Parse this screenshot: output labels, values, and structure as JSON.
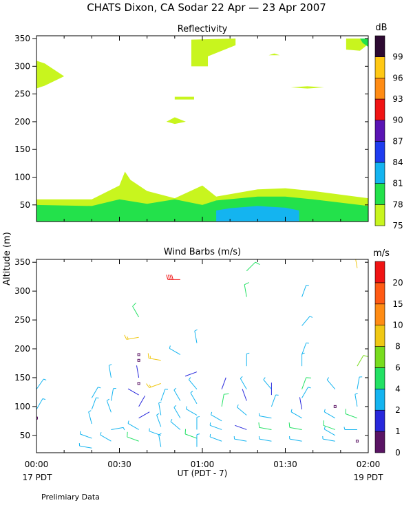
{
  "title": "CHATS Dixon, CA  Sodar  22 Apr — 23 Apr 2007",
  "shared_ylabel": "Altitude (m)",
  "footnote": "Prelimiary Data",
  "colors": {
    "refl_scale": [
      "#c8f51e",
      "#23e14b",
      "#14b4f0",
      "#1e3cf0",
      "#5a14b4",
      "#f01414",
      "#ff8c14",
      "#ffc814",
      "#2d0a32"
    ],
    "wind_scale": [
      "#5a1464",
      "#2828dc",
      "#14b4f0",
      "#23e164",
      "#78dc1e",
      "#f0c814",
      "#ff8c14",
      "#ff5a14",
      "#f01414"
    ]
  },
  "chart_data": [
    {
      "type": "heatmap",
      "title": "Reflectivity",
      "unit_label": "dB",
      "xlim": [
        0,
        120
      ],
      "ylim": [
        20,
        355
      ],
      "yticks": [
        50,
        100,
        150,
        200,
        250,
        300,
        350
      ],
      "xticks": [
        0,
        30,
        60,
        90,
        120
      ],
      "xticklabels": [
        "00:00",
        "00:30",
        "01:00",
        "01:30",
        "02:00"
      ],
      "colorbar": {
        "levels": [
          75,
          78,
          81,
          84,
          87,
          90,
          93,
          96,
          99
        ]
      },
      "bands": [
        {
          "level": 75,
          "x": [
            0,
            20,
            30,
            32,
            34,
            40,
            50,
            60,
            65,
            80,
            90,
            100,
            120
          ],
          "top": [
            60,
            60,
            85,
            110,
            95,
            75,
            62,
            85,
            65,
            78,
            80,
            75,
            62
          ]
        },
        {
          "level": 78,
          "x": [
            0,
            20,
            30,
            40,
            50,
            60,
            65,
            80,
            90,
            100,
            120
          ],
          "top": [
            50,
            48,
            60,
            52,
            60,
            50,
            58,
            65,
            65,
            60,
            48
          ]
        },
        {
          "level": 81,
          "x": [
            65,
            70,
            80,
            90,
            95
          ],
          "top": [
            40,
            44,
            48,
            45,
            40
          ]
        }
      ],
      "patches": [
        {
          "level": 75,
          "x": [
            0,
            3,
            10,
            3,
            0
          ],
          "y": [
            260,
            265,
            282,
            305,
            310
          ]
        },
        {
          "level": 75,
          "x": [
            56,
            72,
            72,
            62,
            62,
            56
          ],
          "y": [
            348,
            350,
            338,
            318,
            300,
            300
          ]
        },
        {
          "level": 75,
          "x": [
            50,
            57,
            57,
            50
          ],
          "y": [
            240,
            240,
            245,
            245
          ]
        },
        {
          "level": 75,
          "x": [
            47,
            50,
            54,
            50,
            47
          ],
          "y": [
            200,
            196,
            200,
            208,
            200
          ]
        },
        {
          "level": 75,
          "x": [
            84,
            86,
            88
          ],
          "y": [
            320,
            323,
            320
          ]
        },
        {
          "level": 75,
          "x": [
            92,
            98,
            104,
            98,
            92
          ],
          "y": [
            262,
            260,
            262,
            264,
            262
          ]
        },
        {
          "level": 75,
          "x": [
            112,
            120,
            120,
            117,
            112
          ],
          "y": [
            350,
            350,
            340,
            328,
            330
          ]
        },
        {
          "level": 78,
          "x": [
            117,
            120,
            120,
            118
          ],
          "y": [
            350,
            350,
            335,
            342
          ]
        }
      ]
    },
    {
      "type": "scatter",
      "title": "Wind Barbs (m/s)",
      "unit_label": "m/s",
      "xlim": [
        0,
        120
      ],
      "ylim": [
        20,
        355
      ],
      "yticks": [
        50,
        100,
        150,
        200,
        250,
        300,
        350
      ],
      "xticks": [
        0,
        30,
        60,
        90,
        120
      ],
      "xticklabels": [
        "00:00",
        "00:30",
        "01:00",
        "01:30",
        "02:00"
      ],
      "xlabel": "UT  (PDT - 7)",
      "x_start_label": "17 PDT",
      "x_end_label": "19 PDT",
      "colorbar": {
        "levels": [
          0,
          1,
          2,
          4,
          6,
          8,
          10,
          15,
          20
        ]
      },
      "barbs": [
        {
          "t": 0,
          "z": 130,
          "d": 35,
          "s": 3
        },
        {
          "t": 0,
          "z": 95,
          "d": 30,
          "s": 3
        },
        {
          "t": 0,
          "z": 80,
          "d": 0,
          "s": 0
        },
        {
          "t": 0,
          "z": 62,
          "d": 355,
          "s": 1
        },
        {
          "t": 0,
          "z": 30,
          "d": 330,
          "s": 1
        },
        {
          "t": 20,
          "z": 115,
          "d": 30,
          "s": 3
        },
        {
          "t": 20,
          "z": 95,
          "d": 20,
          "s": 3
        },
        {
          "t": 20,
          "z": 70,
          "d": 345,
          "s": 3
        },
        {
          "t": 20,
          "z": 45,
          "d": 290,
          "s": 3
        },
        {
          "t": 20,
          "z": 28,
          "d": 280,
          "s": 3
        },
        {
          "t": 27,
          "z": 150,
          "d": 350,
          "s": 3
        },
        {
          "t": 27,
          "z": 110,
          "d": 10,
          "s": 3
        },
        {
          "t": 27,
          "z": 90,
          "d": 340,
          "s": 3
        },
        {
          "t": 27,
          "z": 60,
          "d": 80,
          "s": 3
        },
        {
          "t": 27,
          "z": 40,
          "d": 300,
          "s": 3
        },
        {
          "t": 37,
          "z": 255,
          "d": 330,
          "s": 5
        },
        {
          "t": 37,
          "z": 220,
          "d": 260,
          "s": 8
        },
        {
          "t": 37,
          "z": 190,
          "d": 0,
          "s": 0
        },
        {
          "t": 37,
          "z": 180,
          "d": 0,
          "s": 0
        },
        {
          "t": 37,
          "z": 150,
          "d": 350,
          "s": 1
        },
        {
          "t": 37,
          "z": 140,
          "d": 0,
          "s": 0
        },
        {
          "t": 37,
          "z": 120,
          "d": 300,
          "s": 1
        },
        {
          "t": 37,
          "z": 100,
          "d": 30,
          "s": 1
        },
        {
          "t": 37,
          "z": 80,
          "d": 60,
          "s": 1
        },
        {
          "t": 37,
          "z": 60,
          "d": 300,
          "s": 3
        },
        {
          "t": 37,
          "z": 40,
          "d": 290,
          "s": 5
        },
        {
          "t": 45,
          "z": 180,
          "d": 280,
          "s": 9
        },
        {
          "t": 45,
          "z": 140,
          "d": 250,
          "s": 8
        },
        {
          "t": 45,
          "z": 110,
          "d": 20,
          "s": 3
        },
        {
          "t": 45,
          "z": 85,
          "d": 350,
          "s": 3
        },
        {
          "t": 45,
          "z": 65,
          "d": 340,
          "s": 3
        },
        {
          "t": 45,
          "z": 50,
          "d": 290,
          "s": 3
        },
        {
          "t": 45,
          "z": 30,
          "d": 350,
          "s": 3
        },
        {
          "t": 52,
          "z": 320,
          "d": 270,
          "s": 20
        },
        {
          "t": 52,
          "z": 190,
          "d": 300,
          "s": 3
        },
        {
          "t": 52,
          "z": 110,
          "d": 330,
          "s": 3
        },
        {
          "t": 52,
          "z": 80,
          "d": 330,
          "s": 3
        },
        {
          "t": 52,
          "z": 60,
          "d": 310,
          "s": 3
        },
        {
          "t": 58,
          "z": 210,
          "d": 350,
          "s": 3
        },
        {
          "t": 58,
          "z": 160,
          "d": 250,
          "s": 1
        },
        {
          "t": 58,
          "z": 130,
          "d": 320,
          "s": 3
        },
        {
          "t": 58,
          "z": 105,
          "d": 330,
          "s": 3
        },
        {
          "t": 58,
          "z": 85,
          "d": 300,
          "s": 3
        },
        {
          "t": 58,
          "z": 60,
          "d": 0,
          "s": 3
        },
        {
          "t": 58,
          "z": 45,
          "d": 290,
          "s": 5
        },
        {
          "t": 58,
          "z": 30,
          "d": 0,
          "s": 3
        },
        {
          "t": 67,
          "z": 130,
          "d": 20,
          "s": 1
        },
        {
          "t": 67,
          "z": 100,
          "d": 10,
          "s": 5
        },
        {
          "t": 67,
          "z": 75,
          "d": 300,
          "s": 3
        },
        {
          "t": 67,
          "z": 60,
          "d": 290,
          "s": 3
        },
        {
          "t": 67,
          "z": 40,
          "d": 290,
          "s": 3
        },
        {
          "t": 76,
          "z": 335,
          "d": 45,
          "s": 5
        },
        {
          "t": 76,
          "z": 290,
          "d": 350,
          "s": 5
        },
        {
          "t": 76,
          "z": 170,
          "d": 0,
          "s": 3
        },
        {
          "t": 76,
          "z": 130,
          "d": 330,
          "s": 3
        },
        {
          "t": 76,
          "z": 110,
          "d": 340,
          "s": 1
        },
        {
          "t": 76,
          "z": 85,
          "d": 310,
          "s": 3
        },
        {
          "t": 76,
          "z": 60,
          "d": 290,
          "s": 1
        },
        {
          "t": 76,
          "z": 40,
          "d": 280,
          "s": 3
        },
        {
          "t": 85,
          "z": 130,
          "d": 320,
          "s": 3
        },
        {
          "t": 85,
          "z": 120,
          "d": 0,
          "s": 1
        },
        {
          "t": 85,
          "z": 100,
          "d": 20,
          "s": 3
        },
        {
          "t": 85,
          "z": 80,
          "d": 280,
          "s": 3
        },
        {
          "t": 85,
          "z": 60,
          "d": 280,
          "s": 5
        },
        {
          "t": 85,
          "z": 40,
          "d": 280,
          "s": 3
        },
        {
          "t": 96,
          "z": 290,
          "d": 20,
          "s": 3
        },
        {
          "t": 96,
          "z": 240,
          "d": 40,
          "s": 3
        },
        {
          "t": 96,
          "z": 190,
          "d": 20,
          "s": 3
        },
        {
          "t": 96,
          "z": 170,
          "d": 0,
          "s": 3
        },
        {
          "t": 96,
          "z": 130,
          "d": 20,
          "s": 5
        },
        {
          "t": 96,
          "z": 115,
          "d": 30,
          "s": 3
        },
        {
          "t": 96,
          "z": 95,
          "d": 350,
          "s": 1
        },
        {
          "t": 96,
          "z": 80,
          "d": 300,
          "s": 3
        },
        {
          "t": 96,
          "z": 60,
          "d": 280,
          "s": 5
        },
        {
          "t": 96,
          "z": 40,
          "d": 280,
          "s": 3
        },
        {
          "t": 108,
          "z": 130,
          "d": 320,
          "s": 3
        },
        {
          "t": 108,
          "z": 100,
          "d": 0,
          "s": 0
        },
        {
          "t": 108,
          "z": 80,
          "d": 300,
          "s": 3
        },
        {
          "t": 108,
          "z": 60,
          "d": 290,
          "s": 5
        },
        {
          "t": 108,
          "z": 50,
          "d": 300,
          "s": 3
        },
        {
          "t": 108,
          "z": 40,
          "d": 280,
          "s": 3
        },
        {
          "t": 116,
          "z": 340,
          "d": 350,
          "s": 8
        },
        {
          "t": 116,
          "z": 170,
          "d": 30,
          "s": 6
        },
        {
          "t": 116,
          "z": 130,
          "d": 10,
          "s": 3
        },
        {
          "t": 116,
          "z": 100,
          "d": 350,
          "s": 3
        },
        {
          "t": 116,
          "z": 80,
          "d": 290,
          "s": 5
        },
        {
          "t": 116,
          "z": 60,
          "d": 270,
          "s": 3
        },
        {
          "t": 116,
          "z": 40,
          "d": 0,
          "s": 0
        }
      ]
    }
  ]
}
